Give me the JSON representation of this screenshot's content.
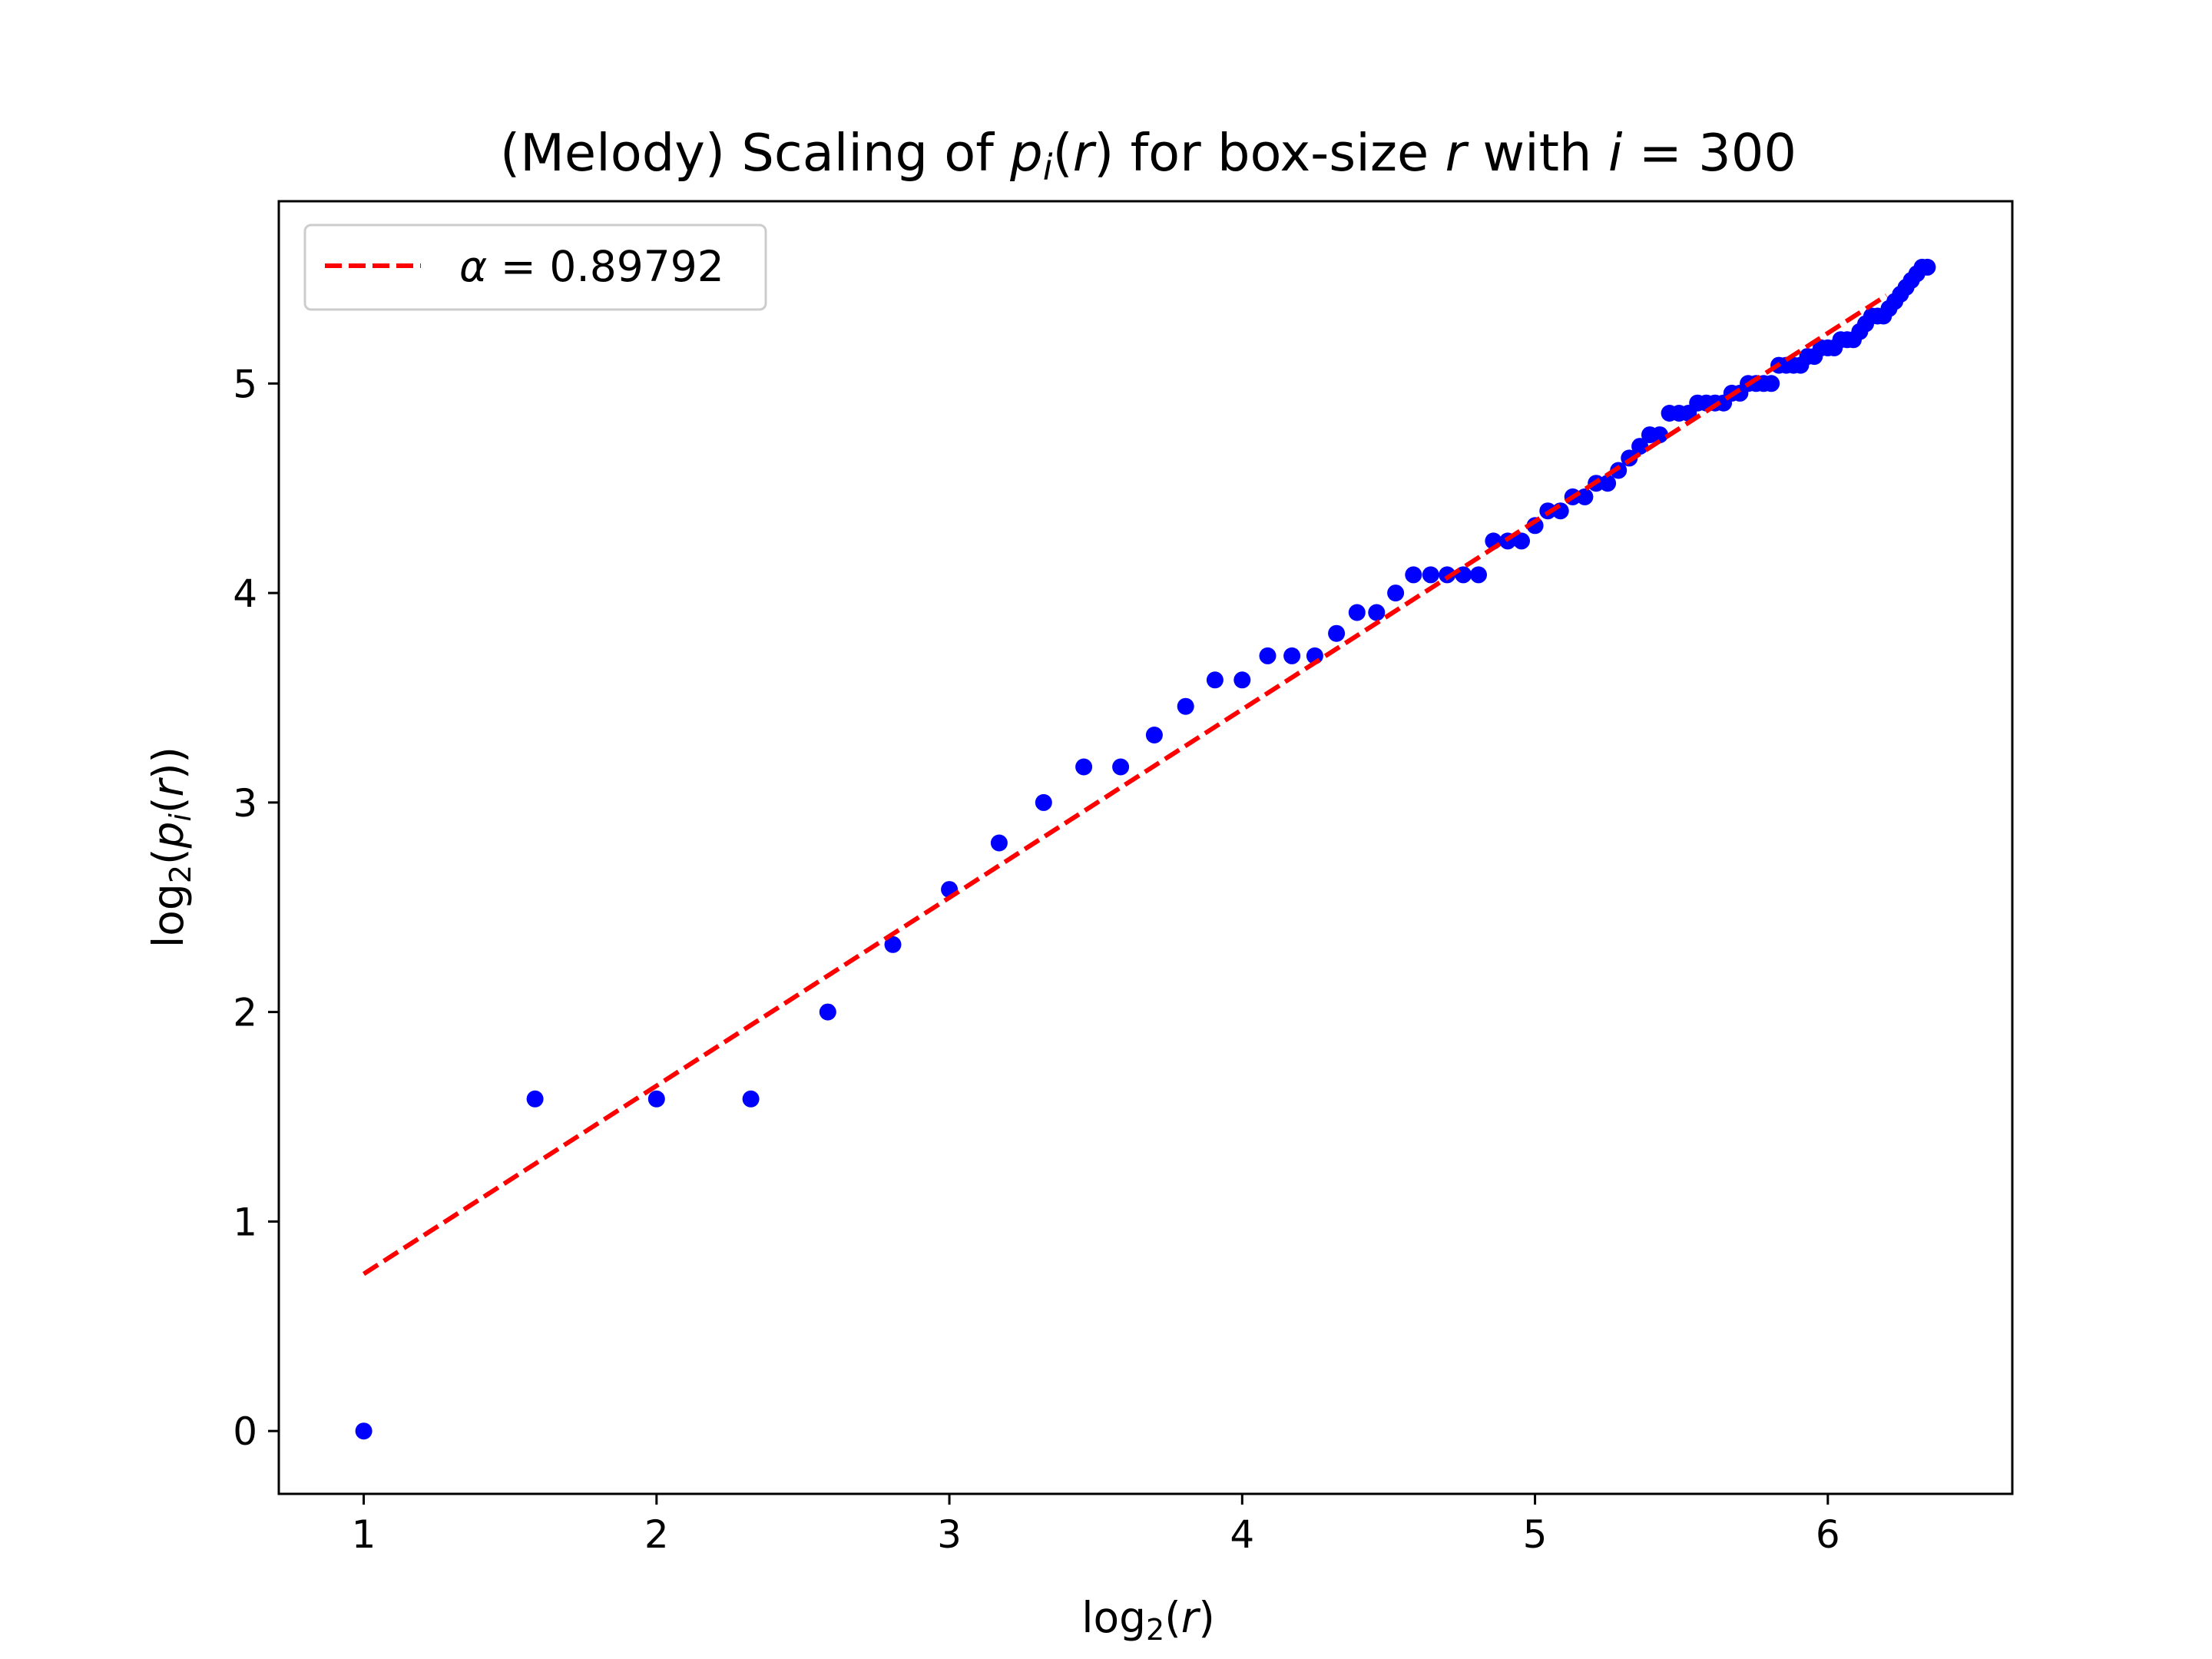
{
  "chart_data": {
    "type": "scatter",
    "title": {
      "pre": "(Melody) Scaling of ",
      "p": "p",
      "sub": "i",
      "mid1": "(",
      "r1": "r",
      "mid2": ") for box-size ",
      "r2": "r",
      "mid3": " with ",
      "i": "i",
      "eq": " = ",
      "val": "300"
    },
    "xlabel": {
      "pre": "log",
      "sub": "2",
      "open": "(",
      "var": "r",
      "close": ")"
    },
    "ylabel": {
      "pre": "log",
      "sub": "2",
      "open": "(",
      "p": "p",
      "psub": "i",
      "open2": "(",
      "var": "r",
      "close": "))"
    },
    "xlim": [
      0.71,
      6.63
    ],
    "ylim": [
      -0.3,
      5.87
    ],
    "xticks": [
      "1",
      "2",
      "3",
      "4",
      "5",
      "6"
    ],
    "yticks": [
      "0",
      "1",
      "2",
      "3",
      "4",
      "5"
    ],
    "grid": false,
    "legend": {
      "position": "upper-left",
      "entries": [
        {
          "label_greek": "α",
          "label_eq": " = ",
          "label_val": "0.89792",
          "style": "dashed",
          "color": "#ff0000"
        }
      ]
    },
    "series": [
      {
        "type": "scatter",
        "color": "#0000ff",
        "x": [
          1,
          1.585,
          2,
          2.322,
          2.585,
          2.807,
          3,
          3.17,
          3.322,
          3.459,
          3.585,
          3.7,
          3.807,
          3.907,
          4,
          4.087,
          4.17,
          4.248,
          4.322,
          4.392,
          4.459,
          4.524,
          4.585,
          4.644,
          4.7,
          4.755,
          4.807,
          4.858,
          4.907,
          4.954,
          5,
          5.044,
          5.087,
          5.129,
          5.17,
          5.209,
          5.248,
          5.285,
          5.322,
          5.358,
          5.392,
          5.426,
          5.459,
          5.492,
          5.524,
          5.555,
          5.585,
          5.615,
          5.644,
          5.672,
          5.7,
          5.728,
          5.755,
          5.781,
          5.807,
          5.833,
          5.858,
          5.883,
          5.907,
          5.931,
          5.954,
          5.977,
          6,
          6.022,
          6.044,
          6.066,
          6.087,
          6.109,
          6.129,
          6.15,
          6.17,
          6.19,
          6.209,
          6.229,
          6.248,
          6.267,
          6.285,
          6.304,
          6.322,
          6.34
        ],
        "y": [
          0,
          1.585,
          1.585,
          1.585,
          2,
          2.322,
          2.585,
          2.807,
          3,
          3.17,
          3.17,
          3.322,
          3.459,
          3.585,
          3.585,
          3.7,
          3.7,
          3.7,
          3.807,
          3.907,
          3.907,
          4,
          4.087,
          4.087,
          4.087,
          4.087,
          4.087,
          4.248,
          4.248,
          4.248,
          4.322,
          4.392,
          4.392,
          4.459,
          4.459,
          4.524,
          4.524,
          4.585,
          4.644,
          4.7,
          4.755,
          4.755,
          4.858,
          4.858,
          4.858,
          4.907,
          4.907,
          4.907,
          4.907,
          4.954,
          4.954,
          5,
          5,
          5,
          5,
          5.087,
          5.087,
          5.087,
          5.087,
          5.129,
          5.129,
          5.17,
          5.17,
          5.17,
          5.209,
          5.209,
          5.209,
          5.248,
          5.285,
          5.322,
          5.322,
          5.322,
          5.358,
          5.392,
          5.426,
          5.459,
          5.492,
          5.524,
          5.555,
          5.555
        ]
      },
      {
        "type": "line",
        "name": "α = 0.89792",
        "style": "dashed",
        "color": "#ff0000",
        "x": [
          1,
          6.2
        ],
        "y": [
          0.75,
          5.42
        ]
      }
    ]
  }
}
